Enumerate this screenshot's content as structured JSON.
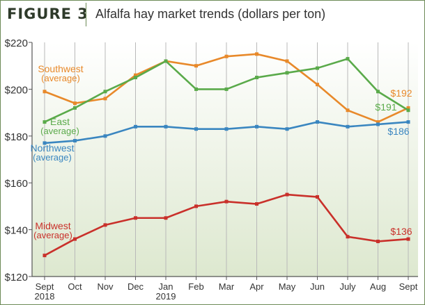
{
  "figure_label": "FIGURE 3",
  "colors": {
    "southwest": "#e8892a",
    "east": "#5aaa4a",
    "northwest": "#3a86c0",
    "midwest": "#c9302a",
    "plot_fill_top": "#ffffff",
    "plot_fill_bottom": "#dde8cf",
    "grid": "#b9b9b9",
    "frame": "#6c8a56"
  },
  "chart_data": {
    "type": "line",
    "title": "Alfalfa hay market trends (dollars per ton)",
    "categories": [
      [
        "Sept",
        "2018"
      ],
      [
        "Oct"
      ],
      [
        "Nov"
      ],
      [
        "Dec"
      ],
      [
        "Jan",
        "2019"
      ],
      [
        "Feb"
      ],
      [
        "Mar"
      ],
      [
        "Apr"
      ],
      [
        "May"
      ],
      [
        "Jun"
      ],
      [
        "July"
      ],
      [
        "Aug"
      ],
      [
        "Sept"
      ]
    ],
    "ylim": [
      120,
      220
    ],
    "yticks": [
      "$220",
      "$200",
      "$180",
      "$160",
      "$140",
      "$120"
    ],
    "ytick_values": [
      220,
      200,
      180,
      160,
      140,
      120
    ],
    "grid": "vertical",
    "series": [
      {
        "key": "southwest",
        "label_lines": [
          "Southwest",
          "(average)"
        ],
        "end_label": "$192",
        "values": [
          199,
          194,
          196,
          206,
          212,
          210,
          214,
          215,
          212,
          202,
          191,
          186,
          192
        ]
      },
      {
        "key": "east",
        "label_lines": [
          "East",
          "(average)"
        ],
        "end_label": "$191",
        "values": [
          186,
          192,
          199,
          205,
          212,
          200,
          200,
          205,
          207,
          209,
          213,
          199,
          191
        ]
      },
      {
        "key": "northwest",
        "label_lines": [
          "Northwest",
          "(average)"
        ],
        "end_label": "$186",
        "values": [
          177,
          178,
          180,
          184,
          184,
          183,
          183,
          184,
          183,
          186,
          184,
          185,
          186
        ]
      },
      {
        "key": "midwest",
        "label_lines": [
          "Midwest",
          "(average)"
        ],
        "end_label": "$136",
        "values": [
          129,
          136,
          142,
          145,
          145,
          150,
          152,
          151,
          155,
          154,
          137,
          135,
          136
        ]
      }
    ]
  }
}
